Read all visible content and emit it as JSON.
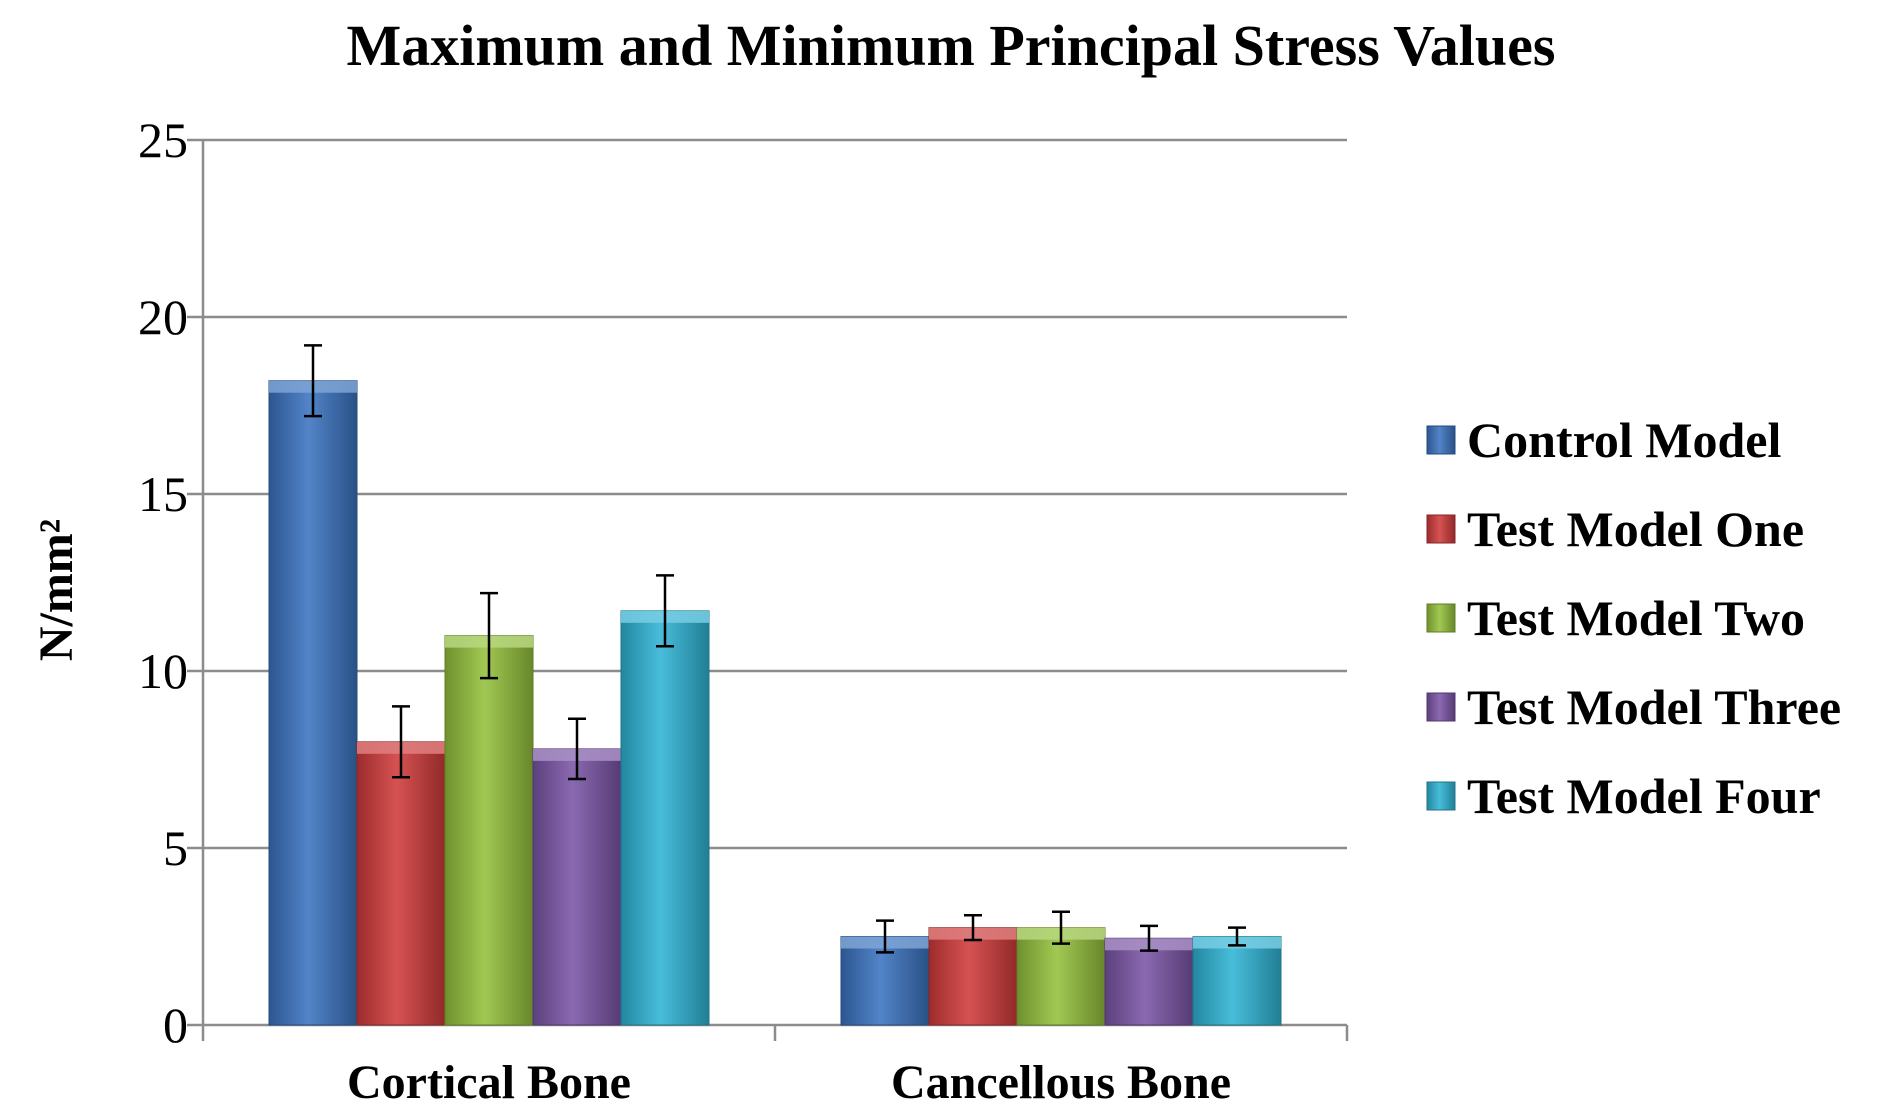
{
  "chart_data": {
    "type": "bar",
    "title": "Maximum and Minimum Principal Stress Values",
    "xlabel": "",
    "ylabel": "N/mm²",
    "categories": [
      "Cortical Bone",
      "Cancellous Bone"
    ],
    "ylim": [
      0,
      25
    ],
    "yticks": [
      "0",
      "5",
      "10",
      "15",
      "20",
      "25"
    ],
    "grid": true,
    "legend_position": "right",
    "series": [
      {
        "name": "Control Model",
        "values": [
          18.2,
          2.5
        ],
        "errors": [
          1.0,
          0.45
        ],
        "color": "#3A73C0"
      },
      {
        "name": "Test Model One",
        "values": [
          8.0,
          2.75
        ],
        "errors": [
          1.0,
          0.35
        ],
        "color": "#D03A3A"
      },
      {
        "name": "Test Model Two",
        "values": [
          11.0,
          2.75
        ],
        "errors": [
          1.2,
          0.45
        ],
        "color": "#94C13C"
      },
      {
        "name": "Test Model Three",
        "values": [
          7.8,
          2.45
        ],
        "errors": [
          0.85,
          0.35
        ],
        "color": "#7B55A6"
      },
      {
        "name": "Test Model Four",
        "values": [
          11.7,
          2.5
        ],
        "errors": [
          1.0,
          0.25
        ],
        "color": "#2FB4D5"
      }
    ]
  }
}
